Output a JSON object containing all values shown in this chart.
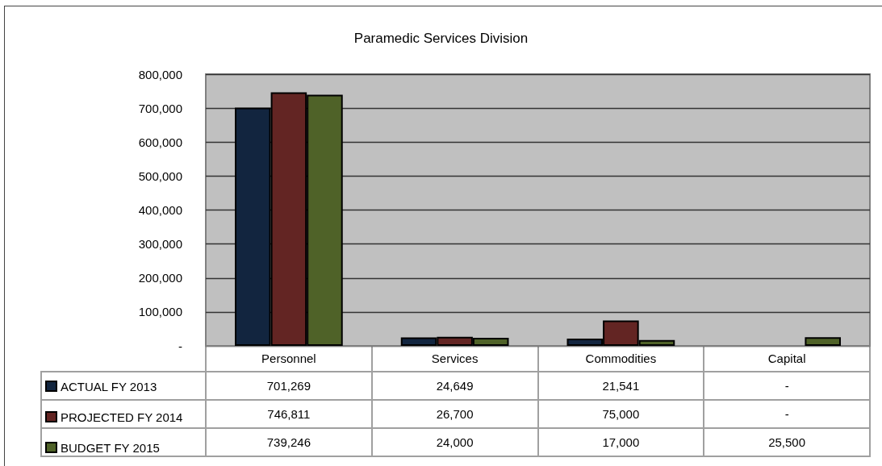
{
  "chart_data": {
    "type": "bar",
    "title": "Paramedic Services Division",
    "categories": [
      "Personnel",
      "Services",
      "Commodities",
      "Capital"
    ],
    "series": [
      {
        "name": "ACTUAL FY 2013",
        "color": "#12253f",
        "values": [
          701269,
          24649,
          21541,
          null
        ],
        "value_labels": [
          "701,269",
          "24,649",
          "21,541",
          "-"
        ]
      },
      {
        "name": "PROJECTED FY 2014",
        "color": "#632523",
        "values": [
          746811,
          26700,
          75000,
          null
        ],
        "value_labels": [
          "746,811",
          "26,700",
          "75,000",
          "-"
        ]
      },
      {
        "name": "BUDGET FY 2015",
        "color": "#4f6228",
        "values": [
          739246,
          24000,
          17000,
          25500
        ],
        "value_labels": [
          "739,246",
          "24,000",
          "17,000",
          "25,500"
        ]
      }
    ],
    "ylim": [
      0,
      800000
    ],
    "yticks": [
      {
        "value": 0,
        "label": "-"
      },
      {
        "value": 100000,
        "label": "100,000"
      },
      {
        "value": 200000,
        "label": "200,000"
      },
      {
        "value": 300000,
        "label": "300,000"
      },
      {
        "value": 400000,
        "label": "400,000"
      },
      {
        "value": 500000,
        "label": "500,000"
      },
      {
        "value": 600000,
        "label": "600,000"
      },
      {
        "value": 700000,
        "label": "700,000"
      },
      {
        "value": 800000,
        "label": "800,000"
      }
    ],
    "grid": "y",
    "legend": "bottom left"
  }
}
